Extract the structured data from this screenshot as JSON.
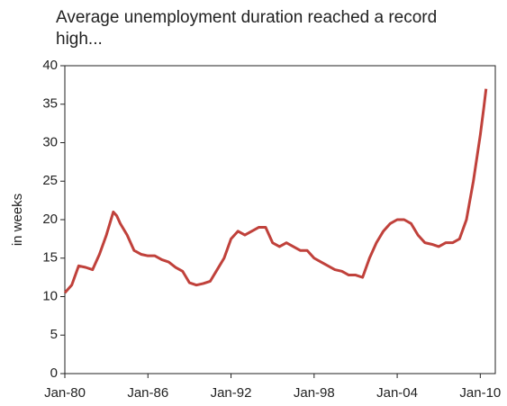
{
  "chart_data": {
    "type": "line",
    "title": "Average unemployment duration reached a record high...",
    "y_label": "in weeks",
    "x": [
      "1980-01",
      "1980-07",
      "1981-01",
      "1981-07",
      "1982-01",
      "1982-07",
      "1983-01",
      "1983-07",
      "1983-10",
      "1984-01",
      "1984-07",
      "1985-01",
      "1985-07",
      "1986-01",
      "1986-07",
      "1987-01",
      "1987-07",
      "1988-01",
      "1988-07",
      "1989-01",
      "1989-07",
      "1990-01",
      "1990-07",
      "1991-01",
      "1991-07",
      "1992-01",
      "1992-07",
      "1993-01",
      "1993-07",
      "1994-01",
      "1994-07",
      "1995-01",
      "1995-07",
      "1996-01",
      "1996-07",
      "1997-01",
      "1997-07",
      "1998-01",
      "1998-07",
      "1999-01",
      "1999-07",
      "2000-01",
      "2000-07",
      "2001-01",
      "2001-07",
      "2002-01",
      "2002-07",
      "2003-01",
      "2003-07",
      "2004-01",
      "2004-07",
      "2005-01",
      "2005-07",
      "2006-01",
      "2006-07",
      "2007-01",
      "2007-07",
      "2008-01",
      "2008-07",
      "2009-01",
      "2009-07",
      "2010-01",
      "2010-04",
      "2010-06"
    ],
    "series": [
      {
        "name": "Average unemployment duration",
        "color": "#c0413b",
        "values": [
          10.5,
          11.5,
          14,
          13.8,
          13.5,
          15.5,
          18,
          21,
          20.5,
          19.5,
          18,
          16,
          15.5,
          15.3,
          15.3,
          14.8,
          14.5,
          13.8,
          13.3,
          11.8,
          11.5,
          11.7,
          12,
          13.5,
          15,
          17.5,
          18.5,
          18,
          18.5,
          19,
          19,
          17,
          16.5,
          17,
          16.5,
          16,
          16,
          15,
          14.5,
          14,
          13.5,
          13.3,
          12.8,
          12.8,
          12.5,
          15,
          17,
          18.5,
          19.5,
          20,
          20,
          19.5,
          18,
          17,
          16.8,
          16.5,
          17,
          17,
          17.5,
          20,
          25,
          31,
          34.5,
          37
        ]
      }
    ],
    "xlim": [
      "1980-01",
      "2011-02"
    ],
    "xticks": [
      {
        "value": "1980-01",
        "label": "Jan-80"
      },
      {
        "value": "1986-01",
        "label": "Jan-86"
      },
      {
        "value": "1992-01",
        "label": "Jan-92"
      },
      {
        "value": "1998-01",
        "label": "Jan-98"
      },
      {
        "value": "2004-01",
        "label": "Jan-04"
      },
      {
        "value": "2010-01",
        "label": "Jan-10"
      }
    ],
    "ylim": [
      0,
      40
    ],
    "yticks": [
      0,
      5,
      10,
      15,
      20,
      25,
      30,
      35,
      40
    ],
    "grid": false
  }
}
